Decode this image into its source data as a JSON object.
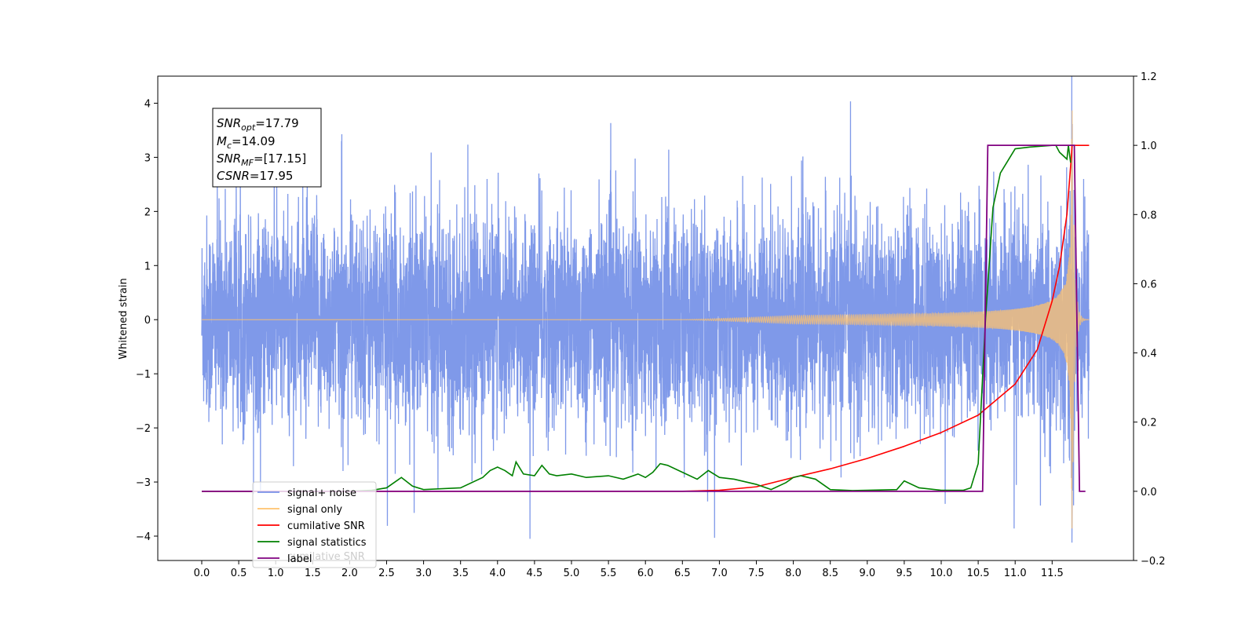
{
  "chart_data": {
    "type": "line",
    "title": "",
    "xlabel": "",
    "ylabel": "Whitened strain",
    "xlim": [
      -0.6,
      12.3
    ],
    "ylim": [
      -4.45,
      4.5
    ],
    "y2lim": [
      -0.2,
      1.2
    ],
    "x_ticks": [
      "0.0",
      "0.5",
      "1.0",
      "1.5",
      "2.0",
      "2.5",
      "3.0",
      "3.5",
      "4.0",
      "4.5",
      "5.0",
      "5.5",
      "6.0",
      "6.5",
      "7.0",
      "7.5",
      "8.0",
      "8.5",
      "9.0",
      "9.5",
      "10.0",
      "10.5",
      "11.0",
      "11.5"
    ],
    "y_ticks": [
      "4",
      "3",
      "2",
      "1",
      "0",
      "−1",
      "−2",
      "−3",
      "−4"
    ],
    "y2_ticks": [
      "1.2",
      "1.0",
      "0.8",
      "0.6",
      "0.4",
      "0.2",
      "0.0",
      "−0.2"
    ],
    "grid": false,
    "legend_placement": "lower-left",
    "annotation": {
      "snr_opt": {
        "sym": "SNR",
        "sub": "opt",
        "rest": "=17.79"
      },
      "mc": {
        "sym": "M",
        "sub": "c",
        "rest": "=14.09"
      },
      "snr_mf": {
        "sym": "SNR",
        "sub": "MF",
        "rest": "=[17.15]"
      },
      "csnr": {
        "sym": "CSNR",
        "sub": "",
        "rest": "=17.95"
      }
    },
    "legend_ghost_text": "cumilative SNR",
    "series": [
      {
        "name": "signal+ noise",
        "axis": "left",
        "color": "#7893e8",
        "description": "whitened noise with embedded chirp, roughly within ±2.5 with spikes to ±4"
      },
      {
        "name": "signal only",
        "axis": "left",
        "color": "#ffc36e",
        "chirp": {
          "t_start": 6.5,
          "t_merge": 11.77,
          "t_end": 11.98,
          "peak_amplitude": 4.0
        }
      },
      {
        "name": "cumilative SNR",
        "axis": "right",
        "color": "#ff0000",
        "x": [
          0,
          6.5,
          7.0,
          7.5,
          8.0,
          8.5,
          9.0,
          9.5,
          10.0,
          10.5,
          11.0,
          11.3,
          11.5,
          11.6,
          11.7,
          11.75,
          11.77,
          12.0
        ],
        "y": [
          0.0,
          0.0,
          0.003,
          0.013,
          0.04,
          0.065,
          0.095,
          0.13,
          0.17,
          0.22,
          0.31,
          0.41,
          0.55,
          0.65,
          0.8,
          0.94,
          1.0,
          1.0
        ]
      },
      {
        "name": "signal statistics",
        "axis": "right",
        "color": "#008000",
        "x": [
          0.0,
          1.0,
          2.0,
          2.3,
          2.5,
          2.7,
          2.85,
          3.0,
          3.5,
          3.8,
          3.9,
          4.0,
          4.1,
          4.2,
          4.25,
          4.35,
          4.5,
          4.6,
          4.7,
          4.8,
          5.0,
          5.2,
          5.5,
          5.7,
          5.9,
          6.0,
          6.1,
          6.2,
          6.3,
          6.5,
          6.7,
          6.85,
          7.0,
          7.2,
          7.5,
          7.7,
          7.9,
          8.0,
          8.1,
          8.3,
          8.5,
          8.8,
          9.0,
          9.4,
          9.5,
          9.7,
          10.0,
          10.3,
          10.4,
          10.5,
          10.6,
          10.7,
          10.8,
          11.0,
          11.2,
          11.5,
          11.55,
          11.6,
          11.7,
          11.72,
          11.75
        ],
        "y": [
          0.0,
          0.0,
          0.0,
          0.003,
          0.01,
          0.04,
          0.015,
          0.005,
          0.01,
          0.04,
          0.06,
          0.07,
          0.06,
          0.045,
          0.085,
          0.05,
          0.045,
          0.075,
          0.05,
          0.045,
          0.05,
          0.04,
          0.045,
          0.035,
          0.05,
          0.04,
          0.055,
          0.08,
          0.075,
          0.055,
          0.035,
          0.06,
          0.04,
          0.035,
          0.02,
          0.005,
          0.025,
          0.04,
          0.045,
          0.035,
          0.005,
          0.002,
          0.003,
          0.005,
          0.03,
          0.01,
          0.003,
          0.003,
          0.01,
          0.08,
          0.5,
          0.82,
          0.92,
          0.99,
          0.995,
          1.0,
          1.0,
          0.98,
          0.96,
          1.0,
          0.95
        ]
      },
      {
        "name": "label",
        "axis": "right",
        "color": "#800080",
        "x": [
          0,
          10.56,
          10.63,
          11.8,
          11.87,
          11.95
        ],
        "y": [
          0,
          0,
          1,
          1,
          0,
          0
        ]
      }
    ]
  }
}
